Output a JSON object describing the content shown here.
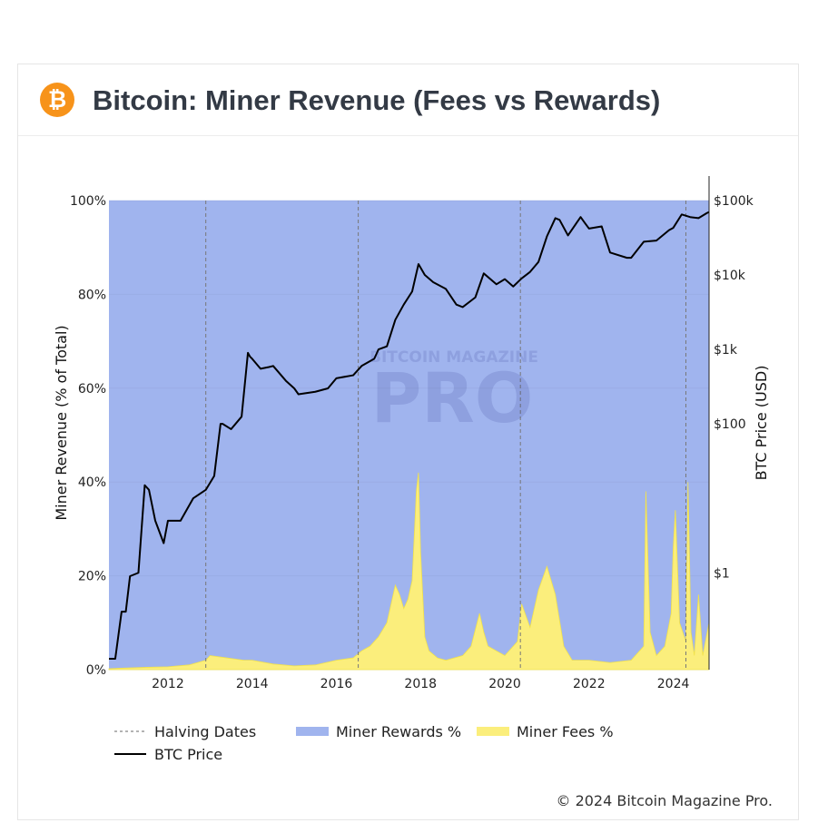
{
  "header": {
    "logo_glyph": "₿",
    "title": "Bitcoin: Miner Revenue (Fees vs Rewards)"
  },
  "watermark": {
    "line1": "BITCOIN MAGAZINE",
    "line2": "PRO"
  },
  "copyright": "© 2024 Bitcoin Magazine Pro.",
  "colors": {
    "rewards": "#a0b4ee",
    "fees": "#fbee7c",
    "price": "#000000",
    "halving": "#777777"
  },
  "chart_data": {
    "type": "area",
    "ylabel": "Miner Revenue (% of Total)",
    "y2label": "BTC Price (USD)",
    "ylim": [
      0,
      100
    ],
    "y_ticks": [
      0,
      20,
      40,
      60,
      80,
      100
    ],
    "y_tick_labels": [
      "0%",
      "20%",
      "40%",
      "60%",
      "80%",
      "100%"
    ],
    "y2_scale": "log",
    "y2lim": [
      0.05,
      100000
    ],
    "y2_ticks": [
      1,
      100,
      1000,
      10000,
      100000
    ],
    "y2_tick_labels": [
      "$1",
      "$100",
      "$1k",
      "$10k",
      "$100k"
    ],
    "xlim": [
      2010.6,
      2024.85
    ],
    "x_ticks": [
      2012,
      2014,
      2016,
      2018,
      2020,
      2022,
      2024
    ],
    "x_tick_labels": [
      "2012",
      "2014",
      "2016",
      "2018",
      "2020",
      "2022",
      "2024"
    ],
    "halving_dates": [
      2012.9,
      2016.52,
      2020.37,
      2024.3
    ],
    "legend": {
      "placement": "bottom",
      "items": [
        {
          "key": "halving",
          "label": "Halving Dates"
        },
        {
          "key": "rewards",
          "label": "Miner Rewards %"
        },
        {
          "key": "fees",
          "label": "Miner Fees %"
        },
        {
          "key": "price",
          "label": "BTC Price"
        }
      ]
    },
    "series": [
      {
        "name": "Miner Fees %",
        "x": [
          2010.6,
          2011.5,
          2012.0,
          2012.5,
          2012.9,
          2013.0,
          2013.4,
          2013.8,
          2014.0,
          2014.5,
          2015.0,
          2015.5,
          2016.0,
          2016.4,
          2016.6,
          2016.8,
          2017.0,
          2017.2,
          2017.4,
          2017.5,
          2017.6,
          2017.7,
          2017.8,
          2017.9,
          2017.95,
          2018.0,
          2018.1,
          2018.2,
          2018.4,
          2018.6,
          2019.0,
          2019.2,
          2019.4,
          2019.5,
          2019.6,
          2019.8,
          2020.0,
          2020.3,
          2020.4,
          2020.6,
          2020.8,
          2021.0,
          2021.2,
          2021.4,
          2021.6,
          2021.8,
          2022.0,
          2022.5,
          2023.0,
          2023.3,
          2023.35,
          2023.45,
          2023.6,
          2023.8,
          2023.95,
          2024.0,
          2024.05,
          2024.15,
          2024.3,
          2024.35,
          2024.42,
          2024.5,
          2024.6,
          2024.7,
          2024.85
        ],
        "values": [
          0.2,
          0.5,
          0.6,
          1.0,
          2.0,
          3.0,
          2.5,
          2.0,
          2.0,
          1.2,
          0.8,
          1.0,
          2.0,
          2.5,
          4.0,
          5.0,
          7.0,
          10.0,
          18.0,
          16.0,
          13.0,
          15.0,
          19.0,
          38.0,
          42.0,
          25.0,
          7.0,
          4.0,
          2.5,
          2.0,
          3.0,
          5.0,
          12.0,
          8.0,
          5.0,
          4.0,
          3.0,
          6.0,
          14.0,
          9.0,
          17.0,
          22.0,
          16.0,
          5.0,
          2.0,
          2.0,
          2.0,
          1.5,
          2.0,
          5.0,
          38.0,
          8.0,
          3.0,
          5.0,
          12.0,
          26.0,
          34.0,
          10.0,
          6.0,
          40.0,
          8.0,
          3.0,
          16.0,
          3.0,
          10.0
        ]
      },
      {
        "name": "Miner Rewards %",
        "x": [
          2010.6,
          2024.85
        ],
        "values": [
          100,
          100
        ]
      },
      {
        "name": "BTC Price",
        "x": [
          2010.6,
          2010.75,
          2010.9,
          2011.0,
          2011.1,
          2011.3,
          2011.45,
          2011.55,
          2011.7,
          2011.9,
          2012.0,
          2012.3,
          2012.6,
          2012.9,
          2013.1,
          2013.25,
          2013.3,
          2013.5,
          2013.75,
          2013.9,
          2013.95,
          2014.0,
          2014.2,
          2014.4,
          2014.5,
          2014.8,
          2015.0,
          2015.1,
          2015.5,
          2015.8,
          2016.0,
          2016.4,
          2016.6,
          2016.9,
          2017.0,
          2017.2,
          2017.4,
          2017.6,
          2017.8,
          2017.95,
          2018.1,
          2018.3,
          2018.6,
          2018.85,
          2019.0,
          2019.3,
          2019.5,
          2019.8,
          2020.0,
          2020.2,
          2020.4,
          2020.6,
          2020.8,
          2021.0,
          2021.2,
          2021.3,
          2021.5,
          2021.8,
          2021.9,
          2022.0,
          2022.3,
          2022.5,
          2022.9,
          2023.0,
          2023.3,
          2023.6,
          2023.9,
          2024.0,
          2024.2,
          2024.4,
          2024.6,
          2024.8,
          2024.85
        ],
        "values": [
          0.07,
          0.07,
          0.3,
          0.3,
          0.9,
          1.0,
          15.0,
          13.0,
          5.0,
          2.5,
          5.0,
          5.0,
          10.0,
          13.0,
          20.0,
          100.0,
          100.0,
          85.0,
          125.0,
          900.0,
          800.0,
          750.0,
          550.0,
          580.0,
          600.0,
          380.0,
          300.0,
          250.0,
          270.0,
          300.0,
          410.0,
          450.0,
          600.0,
          750.0,
          1000.0,
          1100.0,
          2500.0,
          4000.0,
          6000.0,
          14000.0,
          10000.0,
          8000.0,
          6500.0,
          4000.0,
          3700.0,
          5000.0,
          10500.0,
          7500.0,
          8800.0,
          7000.0,
          9000.0,
          11000.0,
          15000.0,
          33000.0,
          58000.0,
          55000.0,
          34000.0,
          60000.0,
          50000.0,
          42000.0,
          45000.0,
          20000.0,
          17000.0,
          17000.0,
          28000.0,
          29000.0,
          40000.0,
          43000.0,
          65000.0,
          60000.0,
          58000.0,
          68000.0,
          70000.0
        ]
      }
    ]
  }
}
